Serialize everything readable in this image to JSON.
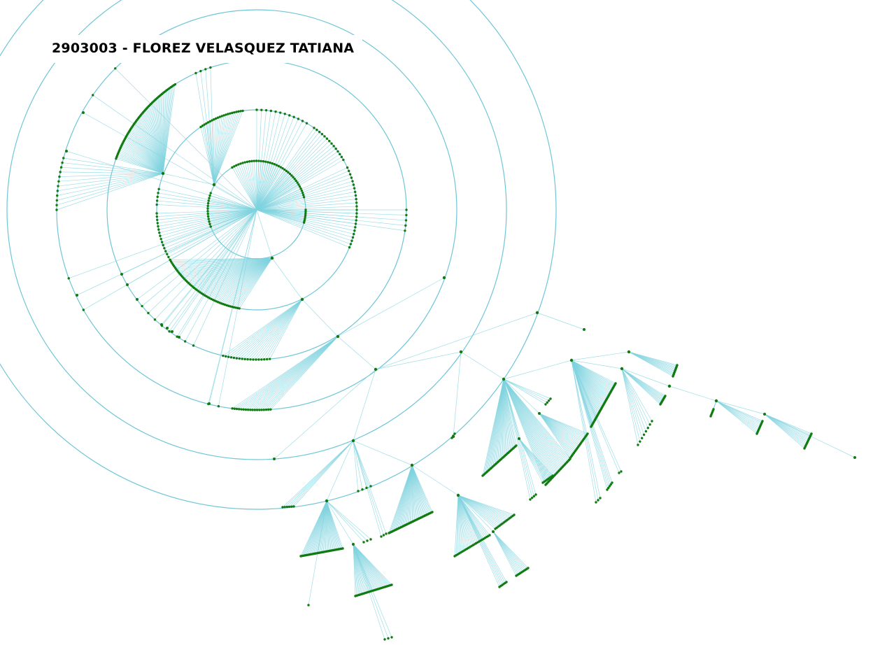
{
  "title": "2903003 - FLOREZ VELASQUEZ TATIANA",
  "colors": {
    "edge": "#7fd3df",
    "ring": "#6fc6d6",
    "node": "#117a11",
    "background": "#ffffff"
  }
}
